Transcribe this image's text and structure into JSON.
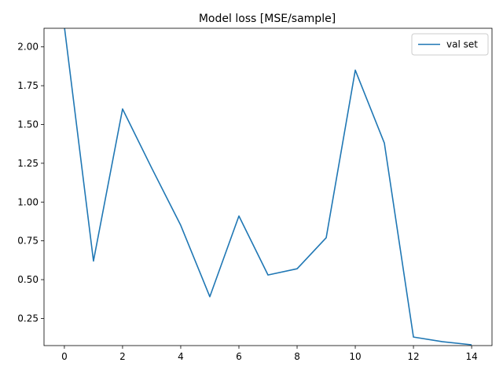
{
  "chart_data": {
    "type": "line",
    "title": "Model loss [MSE/sample]",
    "xlabel": "",
    "ylabel": "",
    "xlim": [
      -0.7,
      14.7
    ],
    "ylim": [
      0.075,
      2.12
    ],
    "x_ticks": [
      0,
      2,
      4,
      6,
      8,
      10,
      12,
      14
    ],
    "y_ticks": [
      0.25,
      0.5,
      0.75,
      1.0,
      1.25,
      1.5,
      1.75,
      2.0
    ],
    "y_tick_labels": [
      "0.25",
      "0.50",
      "0.75",
      "1.00",
      "1.25",
      "1.50",
      "1.75",
      "2.00"
    ],
    "grid": false,
    "legend_position": "top-right",
    "series": [
      {
        "name": "val set",
        "color": "#1f77b4",
        "x": [
          0,
          1,
          2,
          3,
          4,
          5,
          6,
          7,
          8,
          9,
          10,
          11,
          12,
          13,
          14
        ],
        "y": [
          2.13,
          0.62,
          1.6,
          1.22,
          0.85,
          0.39,
          0.91,
          0.53,
          0.57,
          0.77,
          1.85,
          1.38,
          0.13,
          0.1,
          0.08
        ]
      }
    ]
  }
}
